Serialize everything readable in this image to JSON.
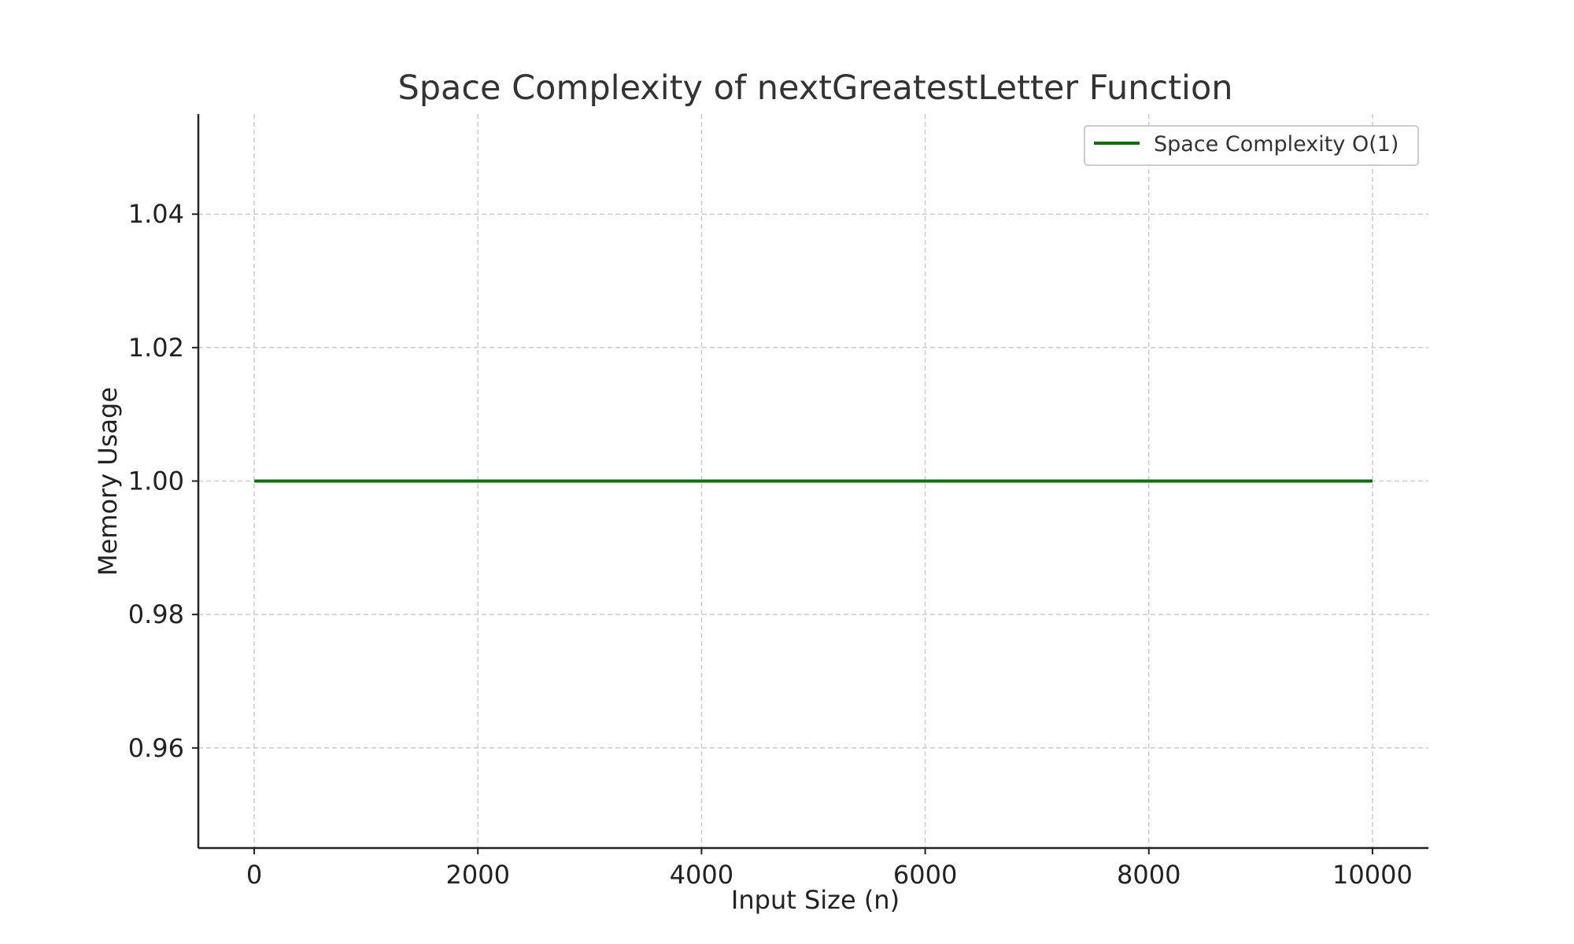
{
  "chart_data": {
    "type": "line",
    "title": "Space Complexity of nextGreatestLetter Function",
    "xlabel": "Input Size (n)",
    "ylabel": "Memory Usage",
    "xlim": [
      -500,
      10500
    ],
    "ylim": [
      0.945,
      1.055
    ],
    "x_ticks": [
      0,
      2000,
      4000,
      6000,
      8000,
      10000
    ],
    "x_tick_labels": [
      "0",
      "2000",
      "4000",
      "6000",
      "8000",
      "10000"
    ],
    "y_ticks": [
      0.96,
      0.98,
      1.0,
      1.02,
      1.04
    ],
    "y_tick_labels": [
      "0.96",
      "0.98",
      "1.00",
      "1.02",
      "1.04"
    ],
    "grid": true,
    "legend_position": "top-right",
    "series": [
      {
        "name": "Space Complexity O(1)",
        "color": "#0a720a",
        "x": [
          1,
          10000
        ],
        "y": [
          1.0,
          1.0
        ]
      }
    ]
  }
}
